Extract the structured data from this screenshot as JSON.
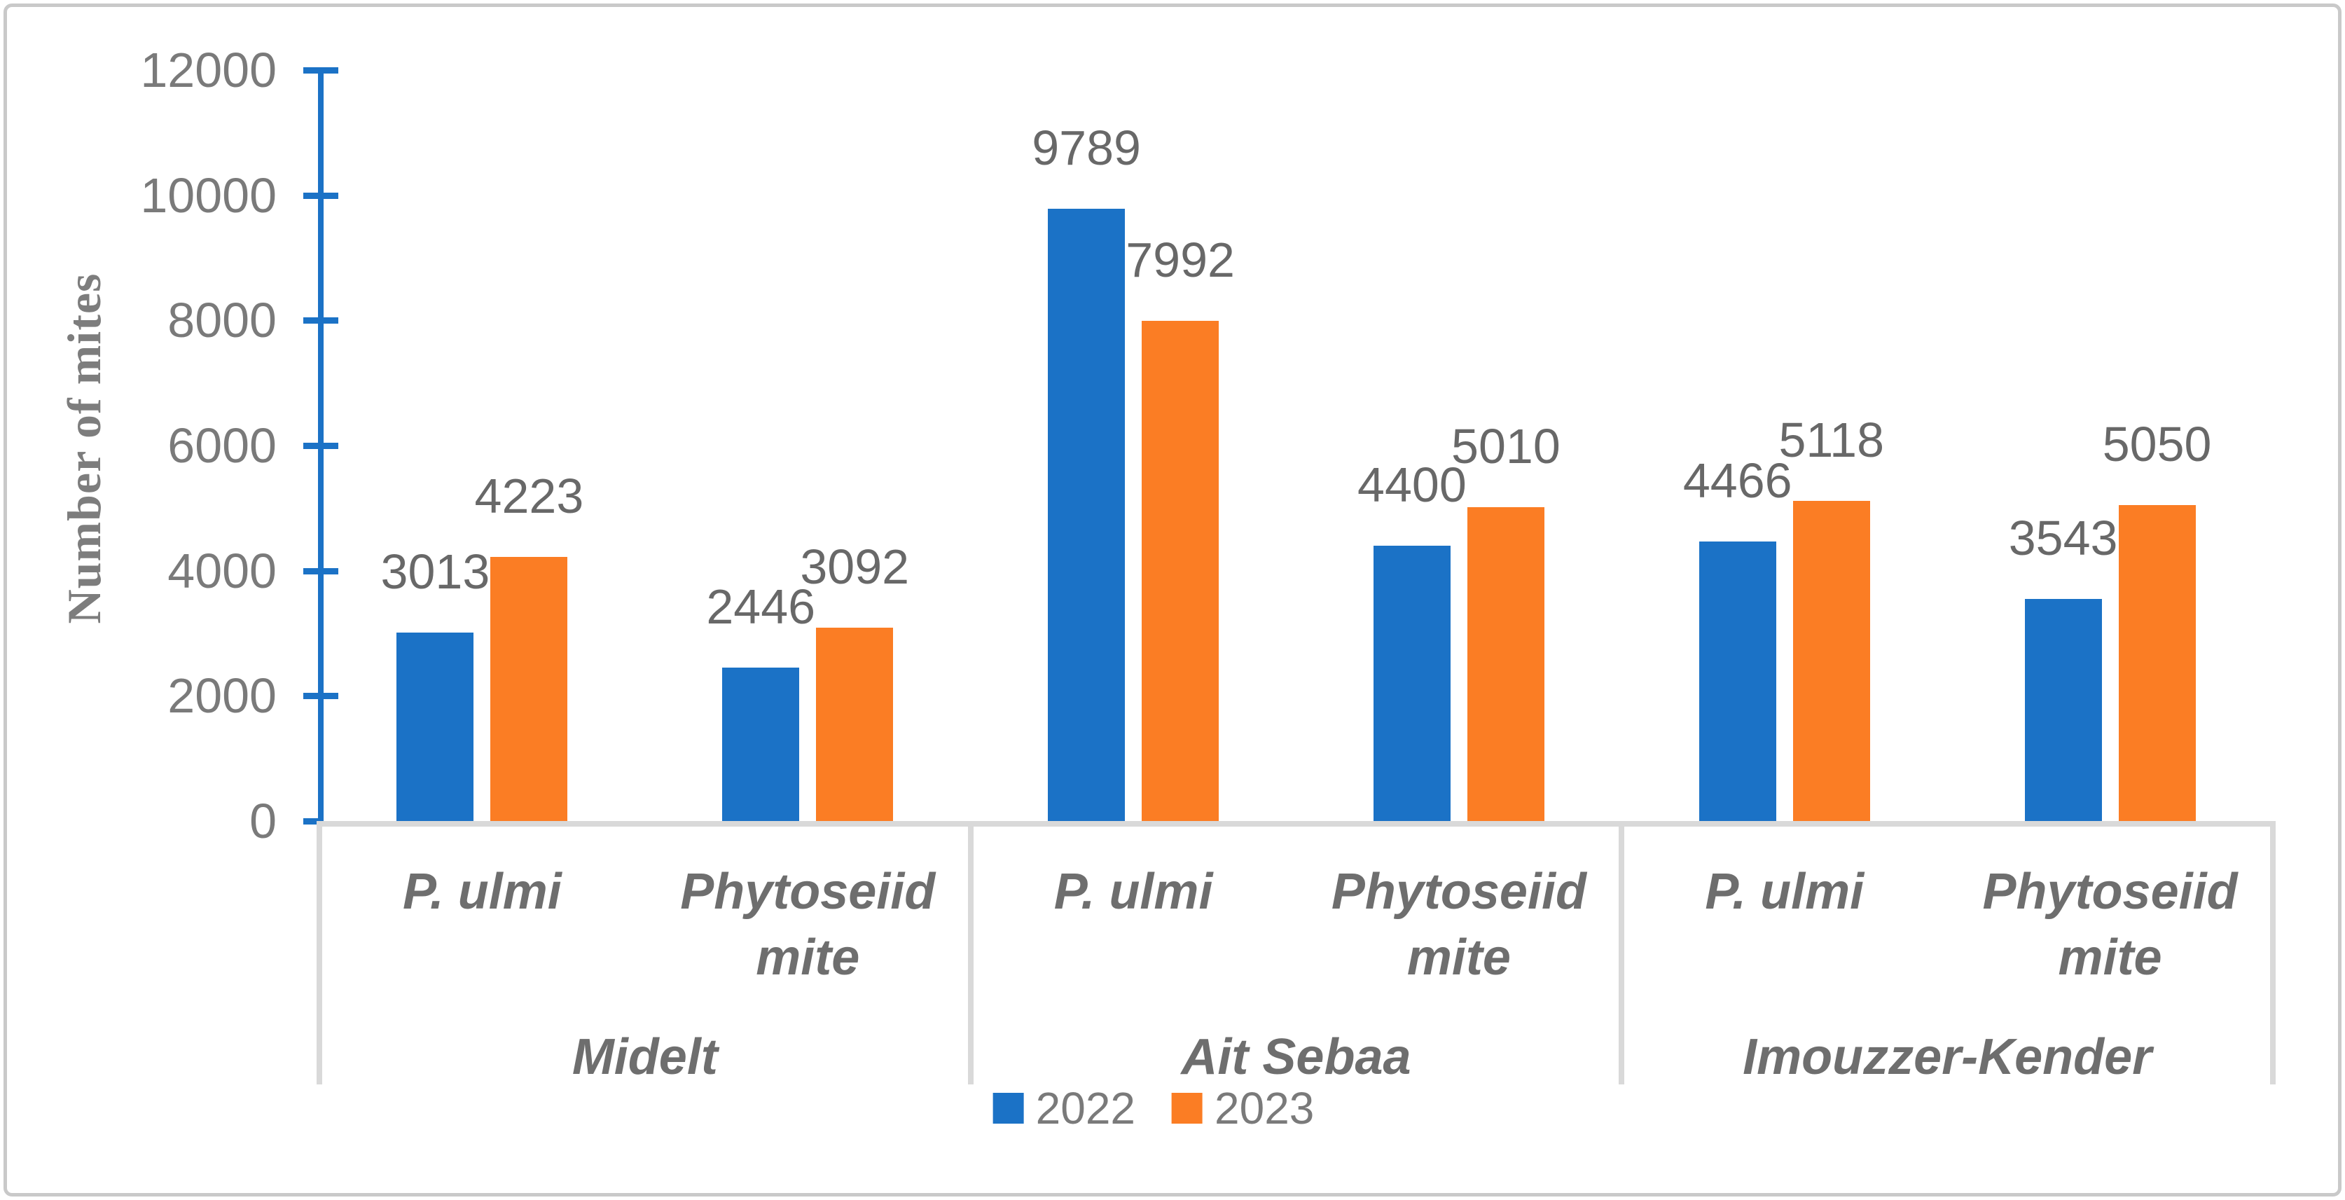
{
  "figure": {
    "background_color": "#FFFFFF",
    "border_color": "#C9C9C9"
  },
  "colors": {
    "axis_blue": "#1B72C6",
    "series_2022": "#1B72C6",
    "series_2023": "#FB7D24",
    "gridline_gray": "#D9D9D9",
    "label_gray": "#686868",
    "tick_label_gray": "#7A7A7A",
    "category_gray": "#6E6E6E"
  },
  "chart_data": {
    "type": "bar",
    "title": "",
    "xlabel": "",
    "ylabel": "Number of mites",
    "ylim": [
      0,
      12000
    ],
    "yticks": [
      0,
      2000,
      4000,
      6000,
      8000,
      10000,
      12000
    ],
    "grid": false,
    "data_labels": true,
    "legend_position": "bottom",
    "series_names": [
      "2022",
      "2023"
    ],
    "series_colors": [
      "#1B72C6",
      "#FB7D24"
    ],
    "groups": [
      {
        "label": "Midelt",
        "categories": [
          "P. ulmi",
          "Phytoseiid mite"
        ],
        "series": [
          {
            "name": "2022",
            "values": [
              3013,
              2446
            ]
          },
          {
            "name": "2023",
            "values": [
              4223,
              3092
            ]
          }
        ]
      },
      {
        "label": "Ait Sebaa",
        "categories": [
          "P. ulmi",
          "Phytoseiid mite"
        ],
        "series": [
          {
            "name": "2022",
            "values": [
              9789,
              4400
            ]
          },
          {
            "name": "2023",
            "values": [
              7992,
              5010
            ]
          }
        ]
      },
      {
        "label": "Imouzzer-Kender",
        "categories": [
          "P. ulmi",
          "Phytoseiid mite"
        ],
        "series": [
          {
            "name": "2022",
            "values": [
              4466,
              3543
            ]
          },
          {
            "name": "2023",
            "values": [
              5118,
              5050
            ]
          }
        ]
      }
    ]
  },
  "legend": {
    "items": [
      {
        "label": "2022",
        "color": "#1B72C6"
      },
      {
        "label": "2023",
        "color": "#FB7D24"
      }
    ]
  }
}
